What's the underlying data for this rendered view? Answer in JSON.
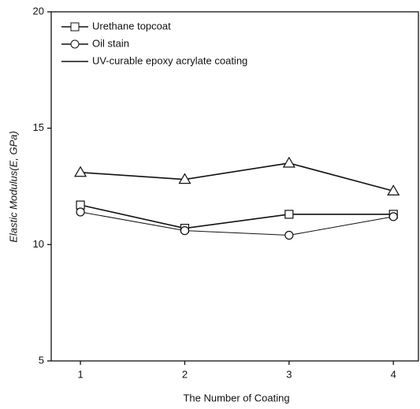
{
  "chart_data": {
    "type": "line",
    "xlabel": "The Number of Coating",
    "ylabel": "Elastic Modulus(E, GPa)",
    "x": [
      1,
      2,
      3,
      4
    ],
    "xlim": [
      0.72,
      4.24
    ],
    "xticks": [
      1,
      2,
      3,
      4
    ],
    "ylim": [
      5,
      20
    ],
    "yticks": [
      5,
      10,
      15,
      20
    ],
    "legend": "upper left",
    "series": [
      {
        "name": "Urethane topcoat",
        "color": "#111111",
        "marker": "square",
        "values": [
          11.7,
          10.7,
          11.3,
          11.3
        ]
      },
      {
        "name": "Oil stain",
        "color": "#111111",
        "marker": "circle",
        "values": [
          11.4,
          10.6,
          10.4,
          11.2
        ]
      },
      {
        "name": "UV-curable epoxy acrylate coating",
        "color": "#111111",
        "marker": "triangle",
        "values": [
          13.1,
          12.8,
          13.5,
          12.3
        ]
      }
    ]
  }
}
